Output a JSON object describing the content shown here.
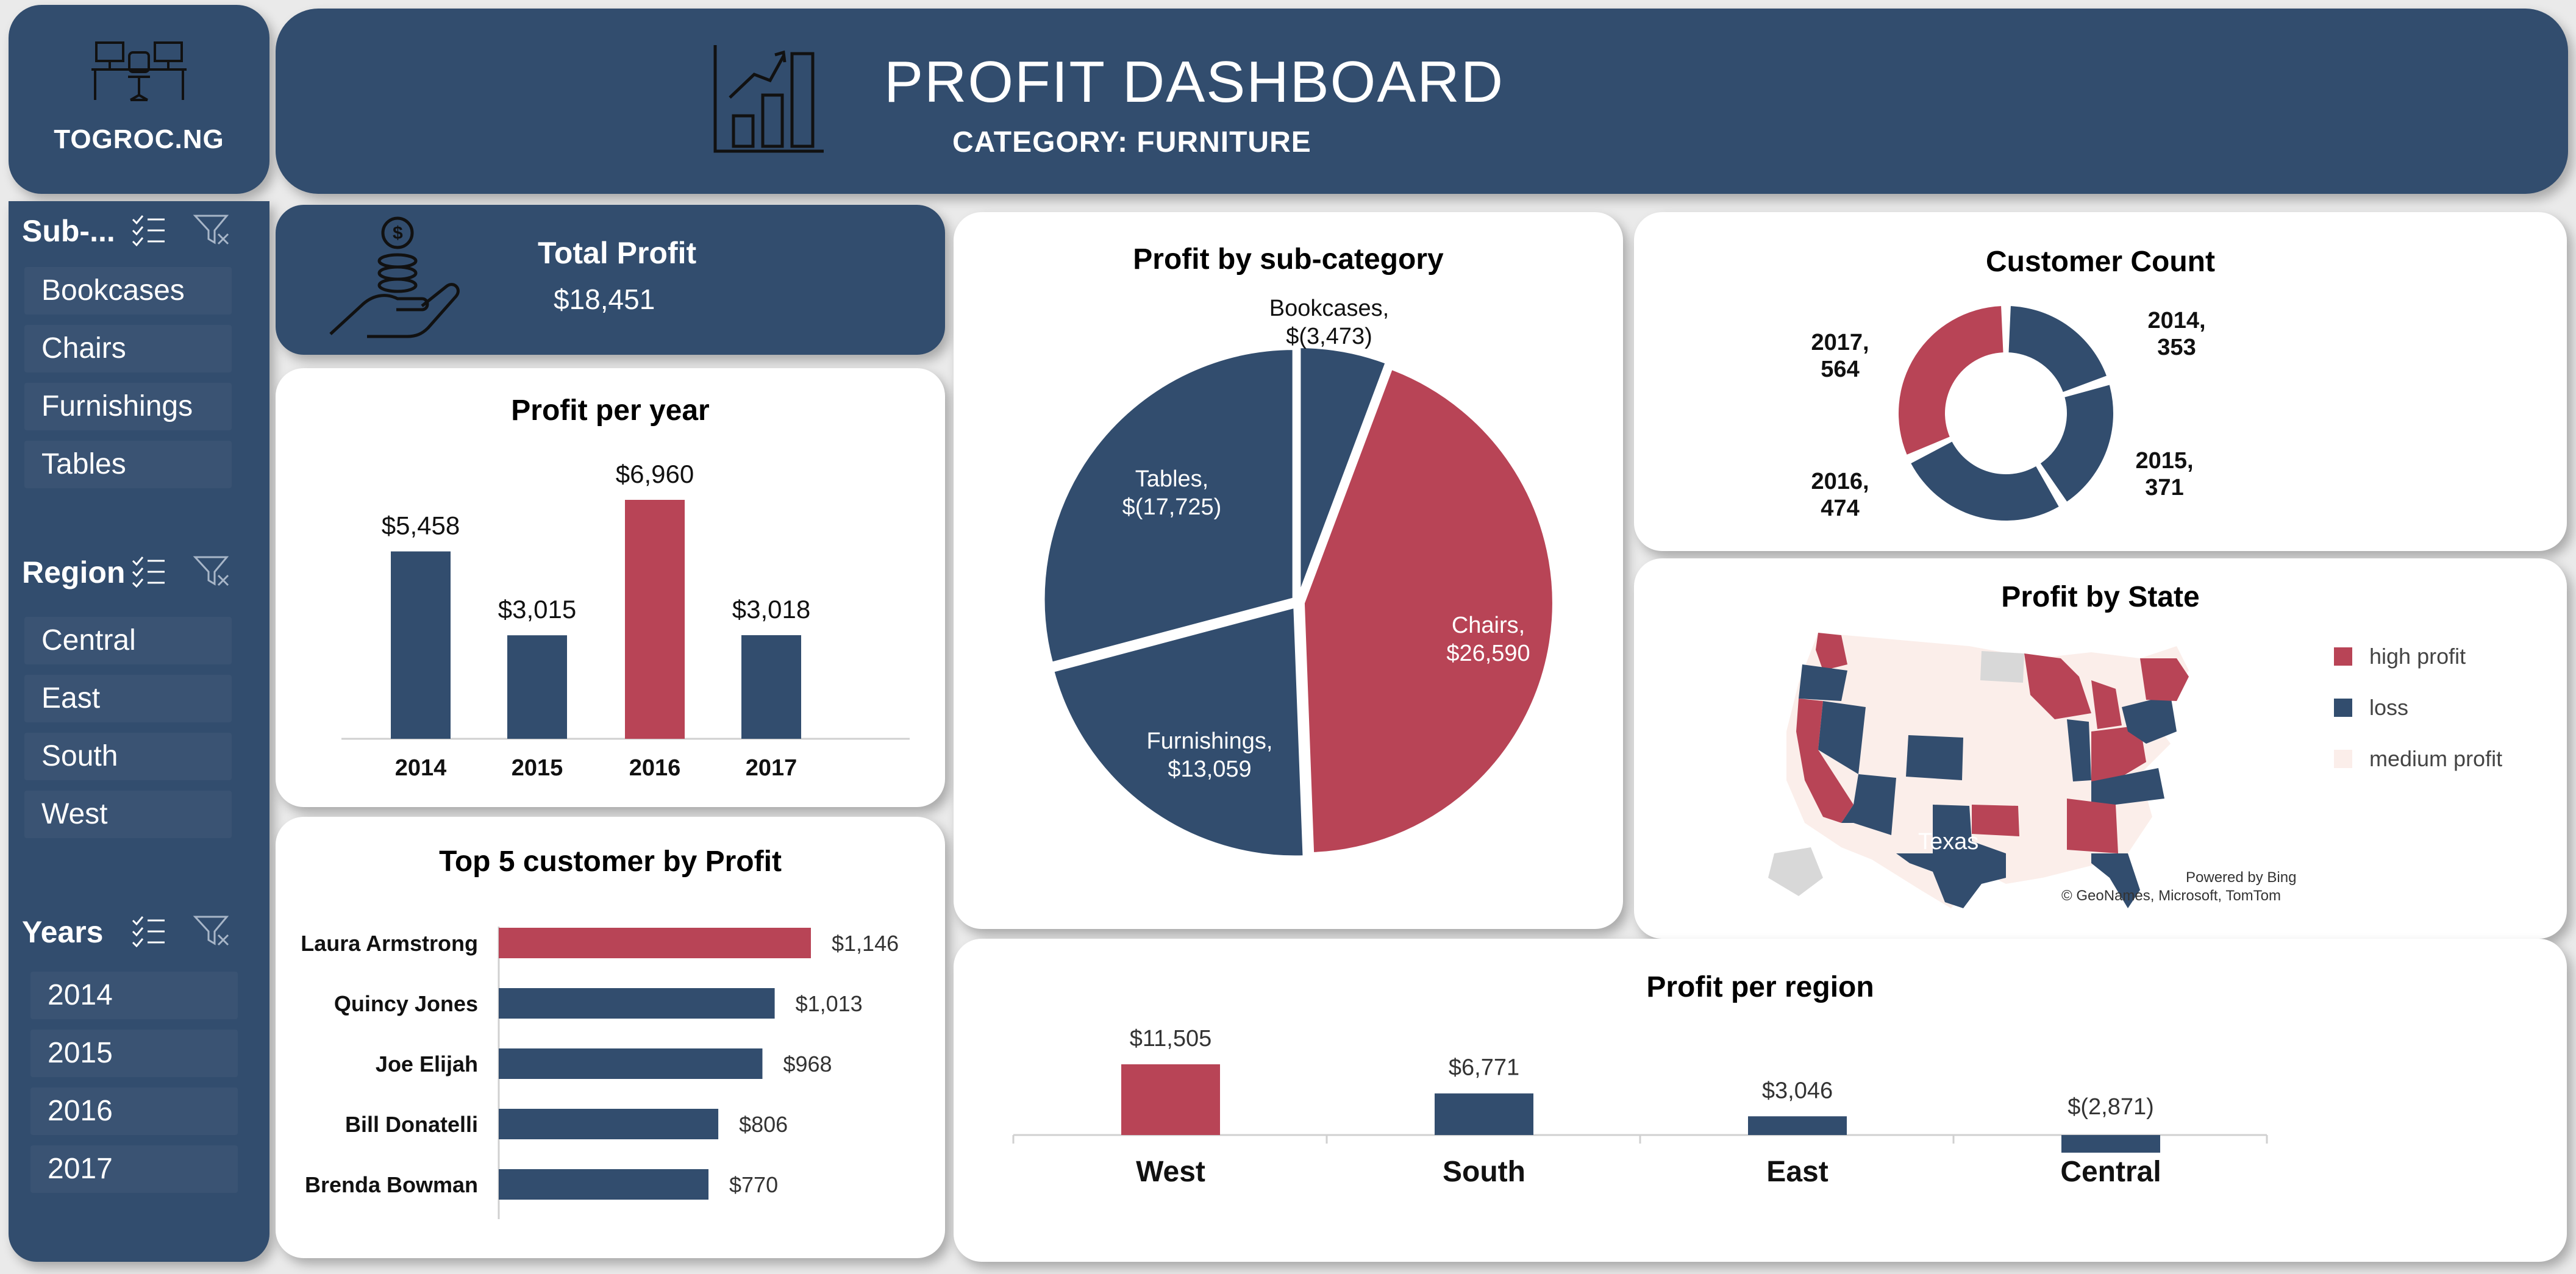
{
  "brand": {
    "name": "TOGROC.NG",
    "logo_icon": "office-desks-icon"
  },
  "header": {
    "title": "PROFIT DASHBOARD",
    "subtitle": "CATEGORY: FURNITURE",
    "icon": "growth-chart-icon"
  },
  "sidebar": {
    "slicers": [
      {
        "title": "Sub-...",
        "items": [
          "Bookcases",
          "Chairs",
          "Furnishings",
          "Tables"
        ]
      },
      {
        "title": "Region",
        "items": [
          "Central",
          "East",
          "South",
          "West"
        ]
      },
      {
        "title": "Years",
        "items": [
          "2014",
          "2015",
          "2016",
          "2017"
        ]
      }
    ]
  },
  "kpi": {
    "label": "Total Profit",
    "value": "$18,451",
    "icon": "money-hand-icon"
  },
  "colors": {
    "navy": "#324d6e",
    "red": "#b84456",
    "light": "#fbeeea",
    "grey": "#d8d8d8"
  },
  "chart_data": [
    {
      "id": "profit_per_year",
      "type": "bar",
      "title": "Profit per year",
      "categories": [
        "2014",
        "2015",
        "2016",
        "2017"
      ],
      "values": [
        5458,
        3015,
        6960,
        3018
      ],
      "labels": [
        "$5,458",
        "$3,015",
        "$6,960",
        "$3,018"
      ],
      "highlight": "2016"
    },
    {
      "id": "top5_customers",
      "type": "bar",
      "orientation": "horizontal",
      "title": "Top 5 customer by Profit",
      "categories": [
        "Laura Armstrong",
        "Quincy Jones",
        "Joe Elijah",
        "Bill Donatelli",
        "Brenda Bowman"
      ],
      "values": [
        1146,
        1013,
        968,
        806,
        770
      ],
      "labels": [
        "$1,146",
        "$1,013",
        "$968",
        "$806",
        "$770"
      ],
      "highlight": "Laura Armstrong"
    },
    {
      "id": "profit_by_subcategory",
      "type": "pie",
      "title": "Profit by sub-category",
      "slices": [
        {
          "name": "Bookcases",
          "value": -3473,
          "label": "$(3,473)",
          "color": "navy"
        },
        {
          "name": "Chairs",
          "value": 26590,
          "label": "$26,590",
          "color": "red"
        },
        {
          "name": "Furnishings",
          "value": 13059,
          "label": "$13,059",
          "color": "navy"
        },
        {
          "name": "Tables",
          "value": -17725,
          "label": "$(17,725)",
          "color": "navy"
        }
      ]
    },
    {
      "id": "customer_count",
      "type": "pie",
      "subtype": "donut",
      "title": "Customer Count",
      "slices": [
        {
          "name": "2014",
          "value": 353,
          "color": "navy"
        },
        {
          "name": "2015",
          "value": 371,
          "color": "navy"
        },
        {
          "name": "2016",
          "value": 474,
          "color": "navy"
        },
        {
          "name": "2017",
          "value": 564,
          "color": "red"
        }
      ]
    },
    {
      "id": "profit_per_region",
      "type": "bar",
      "title": "Profit per region",
      "categories": [
        "West",
        "South",
        "East",
        "Central"
      ],
      "values": [
        11505,
        6771,
        3046,
        -2871
      ],
      "labels": [
        "$11,505",
        "$6,771",
        "$3,046",
        "$(2,871)"
      ],
      "highlight": "West"
    }
  ],
  "map": {
    "title": "Profit by State",
    "legend": [
      {
        "label": "high profit",
        "color": "#b84456"
      },
      {
        "label": "loss",
        "color": "#324d6e"
      },
      {
        "label": "medium profit",
        "color": "#fbeeea"
      }
    ],
    "callout": "Texas",
    "credit1": "Powered by Bing",
    "credit2": "© GeoNames, Microsoft, TomTom"
  }
}
